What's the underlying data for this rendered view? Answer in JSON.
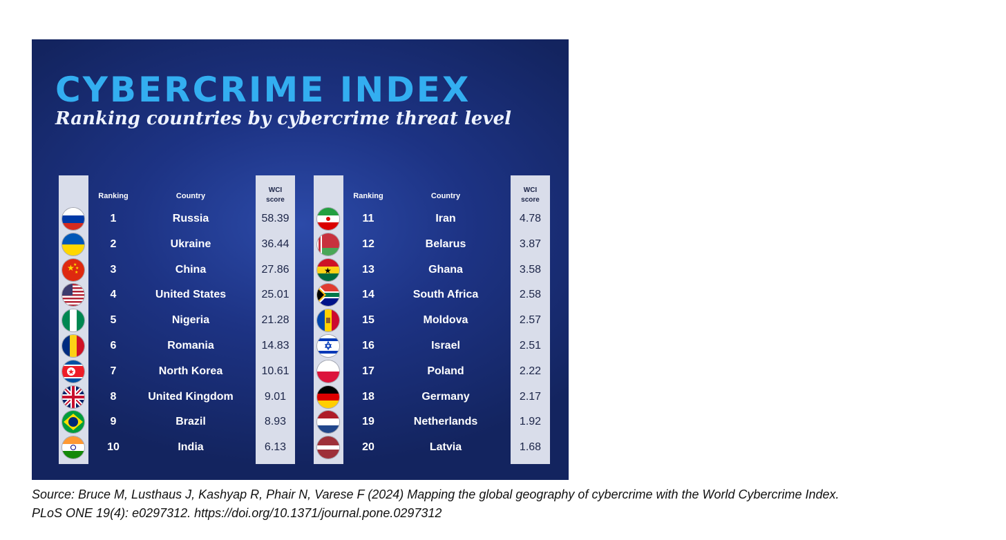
{
  "title": "CYBERCRIME INDEX",
  "subtitle": "Ranking countries by cybercrime threat level",
  "headers": {
    "ranking": "Ranking",
    "country": "Country",
    "score_line1": "WCI",
    "score_line2": "score"
  },
  "left_rows": [
    {
      "rank": "1",
      "country": "Russia",
      "score": "58.39",
      "flag": "russia-flag-icon"
    },
    {
      "rank": "2",
      "country": "Ukraine",
      "score": "36.44",
      "flag": "ukraine-flag-icon"
    },
    {
      "rank": "3",
      "country": "China",
      "score": "27.86",
      "flag": "china-flag-icon"
    },
    {
      "rank": "4",
      "country": "United States",
      "score": "25.01",
      "flag": "usa-flag-icon"
    },
    {
      "rank": "5",
      "country": "Nigeria",
      "score": "21.28",
      "flag": "nigeria-flag-icon"
    },
    {
      "rank": "6",
      "country": "Romania",
      "score": "14.83",
      "flag": "romania-flag-icon"
    },
    {
      "rank": "7",
      "country": "North Korea",
      "score": "10.61",
      "flag": "north-korea-flag-icon"
    },
    {
      "rank": "8",
      "country": "United Kingdom",
      "score": "9.01",
      "flag": "uk-flag-icon"
    },
    {
      "rank": "9",
      "country": "Brazil",
      "score": "8.93",
      "flag": "brazil-flag-icon"
    },
    {
      "rank": "10",
      "country": "India",
      "score": "6.13",
      "flag": "india-flag-icon"
    }
  ],
  "right_rows": [
    {
      "rank": "11",
      "country": "Iran",
      "score": "4.78",
      "flag": "iran-flag-icon"
    },
    {
      "rank": "12",
      "country": "Belarus",
      "score": "3.87",
      "flag": "belarus-flag-icon"
    },
    {
      "rank": "13",
      "country": "Ghana",
      "score": "3.58",
      "flag": "ghana-flag-icon"
    },
    {
      "rank": "14",
      "country": "South Africa",
      "score": "2.58",
      "flag": "south-africa-flag-icon"
    },
    {
      "rank": "15",
      "country": "Moldova",
      "score": "2.57",
      "flag": "moldova-flag-icon"
    },
    {
      "rank": "16",
      "country": "Israel",
      "score": "2.51",
      "flag": "israel-flag-icon"
    },
    {
      "rank": "17",
      "country": "Poland",
      "score": "2.22",
      "flag": "poland-flag-icon"
    },
    {
      "rank": "18",
      "country": "Germany",
      "score": "2.17",
      "flag": "germany-flag-icon"
    },
    {
      "rank": "19",
      "country": "Netherlands",
      "score": "1.92",
      "flag": "netherlands-flag-icon"
    },
    {
      "rank": "20",
      "country": "Latvia",
      "score": "1.68",
      "flag": "latvia-flag-icon"
    }
  ],
  "caption": {
    "line1": "Source: Bruce M, Lusthaus J, Kashyap R, Phair N, Varese F (2024) Mapping the global geography of cybercrime with the World Cybercrime Index.",
    "line2": "PLoS ONE 19(4): e0297312. https://doi.org/10.1371/journal.pone.0297312"
  }
}
